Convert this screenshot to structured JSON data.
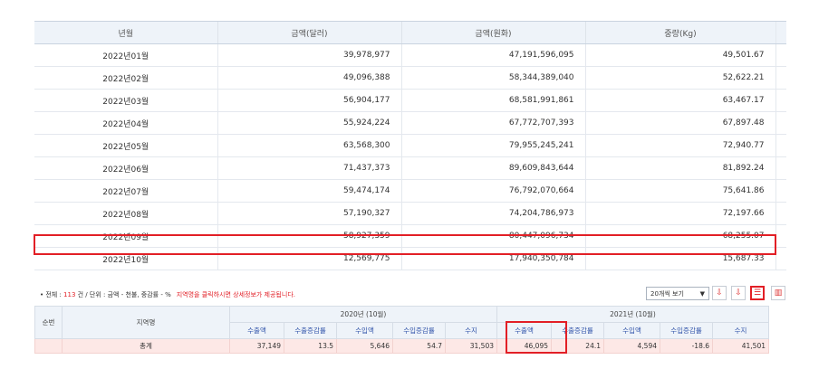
{
  "monthly_table": {
    "headers": [
      "년월",
      "금액(달러)",
      "금액(원화)",
      "중량(Kg)"
    ],
    "rows": [
      [
        "2022년01월",
        "39,978,977",
        "47,191,596,095",
        "49,501.67"
      ],
      [
        "2022년02월",
        "49,096,388",
        "58,344,389,040",
        "52,622.21"
      ],
      [
        "2022년03월",
        "56,904,177",
        "68,581,991,861",
        "63,467.17"
      ],
      [
        "2022년04월",
        "55,924,224",
        "67,772,707,393",
        "67,897.48"
      ],
      [
        "2022년05월",
        "63,568,300",
        "79,955,245,241",
        "72,940.77"
      ],
      [
        "2022년06월",
        "71,437,373",
        "89,609,843,644",
        "81,892.24"
      ],
      [
        "2022년07월",
        "59,474,174",
        "76,792,070,664",
        "75,641.86"
      ],
      [
        "2022년08월",
        "57,190,327",
        "74,204,786,973",
        "72,197.66"
      ],
      [
        "2022년09월",
        "58,927,359",
        "80,447,096,734",
        "68,255.07"
      ],
      [
        "2022년10월",
        "12,569,775",
        "17,940,350,784",
        "15,687.33"
      ]
    ],
    "highlight_color": "#e21f26"
  },
  "info_bar": {
    "prefix": "• 전체 : ",
    "count": "113",
    "suffix": " 건 / 단위 : 금액 - 천불, 중감률 - %",
    "note": "지역명을 클릭하시면 상세정보가 제공됩니다."
  },
  "controls": {
    "page_size": "20개씩 보기",
    "icons": [
      "download-excel-icon",
      "download-file-icon",
      "list-view-icon",
      "chart-view-icon"
    ]
  },
  "region_table": {
    "col_no": "순번",
    "col_region": "지역명",
    "group_2020": "2020년 (10월)",
    "group_2021": "2021년 (10월)",
    "sub_headers": [
      "수출액",
      "수출증감률",
      "수입액",
      "수입증감률",
      "수지"
    ],
    "total_row": {
      "no": "",
      "region": "총계",
      "y2020": [
        "37,149",
        "13.5",
        "5,646",
        "54.7",
        "31,503"
      ],
      "y2021": [
        "46,095",
        "24.1",
        "4,594",
        "-18.6",
        "41,501"
      ]
    }
  }
}
